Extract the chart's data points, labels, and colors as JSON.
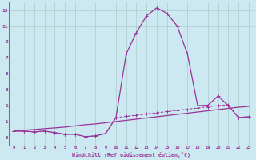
{
  "xlabel": "Windchill (Refroidissement éolien,°C)",
  "x_values": [
    0,
    1,
    2,
    3,
    4,
    5,
    6,
    7,
    8,
    9,
    10,
    11,
    12,
    13,
    14,
    15,
    16,
    17,
    18,
    19,
    20,
    21,
    22,
    23
  ],
  "peak_line_y": [
    -2.2,
    -2.2,
    -2.3,
    -2.2,
    -2.4,
    -2.6,
    -2.6,
    -2.9,
    -2.8,
    -2.5,
    -0.5,
    7.5,
    10.2,
    12.3,
    13.3,
    12.6,
    11.0,
    7.5,
    1.0,
    1.05,
    2.2,
    1.0,
    -0.5,
    -0.4
  ],
  "diag_line_y": [
    -2.2,
    -2.1,
    -2.0,
    -1.9,
    -1.8,
    -1.7,
    -1.55,
    -1.4,
    -1.3,
    -1.15,
    -1.0,
    -0.85,
    -0.7,
    -0.55,
    -0.4,
    -0.25,
    -0.1,
    0.05,
    0.2,
    0.35,
    0.5,
    0.65,
    0.8,
    0.9
  ],
  "dashed_line_y": [
    -2.2,
    -2.2,
    -2.3,
    -2.2,
    -2.4,
    -2.6,
    -2.6,
    -2.9,
    -2.8,
    -2.5,
    -0.5,
    -0.35,
    -0.2,
    -0.05,
    0.1,
    0.25,
    0.4,
    0.55,
    0.7,
    0.85,
    1.0,
    1.1,
    -0.5,
    -0.4
  ],
  "line_color": "#993399",
  "bg_color": "#cce8f0",
  "grid_color": "#aacccc",
  "ylim": [
    -4,
    14
  ],
  "yticks": [
    -3,
    -1,
    1,
    3,
    5,
    7,
    9,
    11,
    13
  ],
  "xlim": [
    -0.5,
    23.5
  ],
  "xticks": [
    0,
    1,
    2,
    3,
    4,
    5,
    6,
    7,
    8,
    9,
    10,
    11,
    12,
    13,
    14,
    15,
    16,
    17,
    18,
    19,
    20,
    21,
    22,
    23
  ]
}
